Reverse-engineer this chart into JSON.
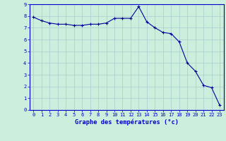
{
  "x": [
    0,
    1,
    2,
    3,
    4,
    5,
    6,
    7,
    8,
    9,
    10,
    11,
    12,
    13,
    14,
    15,
    16,
    17,
    18,
    19,
    20,
    21,
    22,
    23
  ],
  "y": [
    7.9,
    7.6,
    7.4,
    7.3,
    7.3,
    7.2,
    7.2,
    7.3,
    7.3,
    7.4,
    7.8,
    7.8,
    7.8,
    8.8,
    7.5,
    7.0,
    6.6,
    6.5,
    5.8,
    4.0,
    3.3,
    2.1,
    1.9,
    0.4
  ],
  "xlim": [
    -0.5,
    23.5
  ],
  "ylim": [
    0,
    9
  ],
  "xlabel": "Graphe des températures (°c)",
  "bg_color": "#cceedd",
  "grid_color": "#aacccc",
  "line_color": "#000099",
  "marker_color": "#000099",
  "tick_color": "#0000cc",
  "label_color": "#0000cc",
  "xticks": [
    0,
    1,
    2,
    3,
    4,
    5,
    6,
    7,
    8,
    9,
    10,
    11,
    12,
    13,
    14,
    15,
    16,
    17,
    18,
    19,
    20,
    21,
    22,
    23
  ],
  "yticks": [
    0,
    1,
    2,
    3,
    4,
    5,
    6,
    7,
    8,
    9
  ],
  "tick_fontsize": 5.0,
  "xlabel_fontsize": 6.2
}
